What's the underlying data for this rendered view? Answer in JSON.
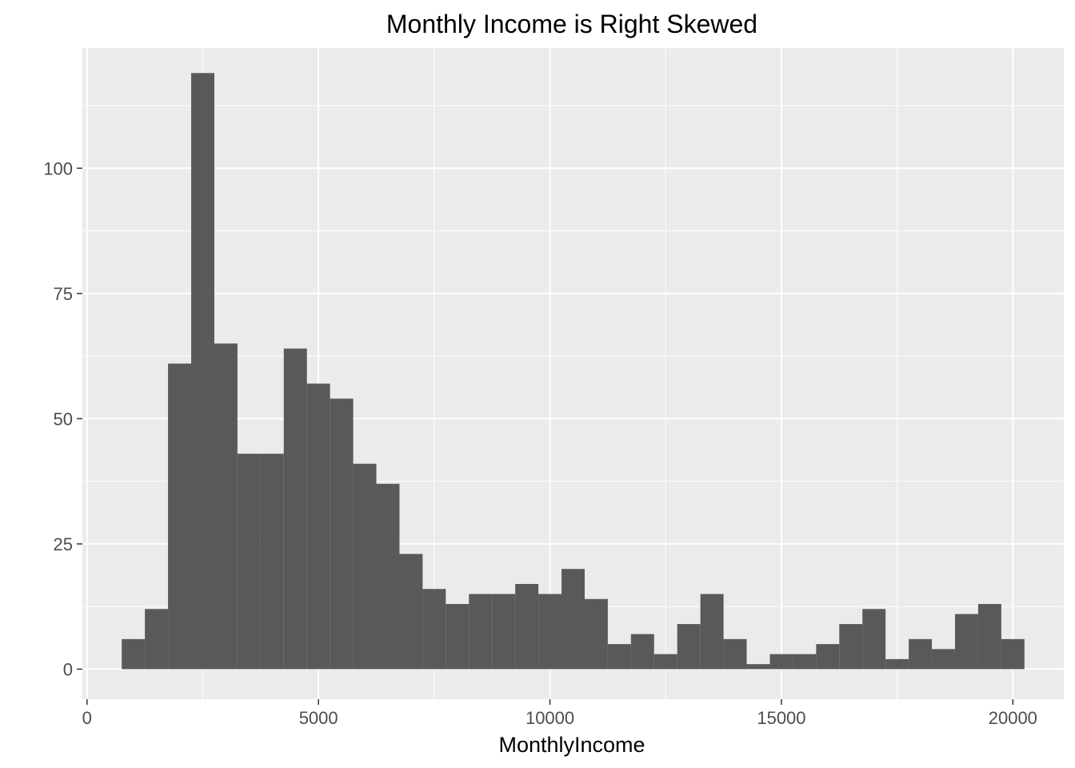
{
  "chart_data": {
    "type": "bar",
    "title": "Monthly Income is Right Skewed",
    "xlabel": "MonthlyIncome",
    "ylabel": "",
    "xlim": [
      -100,
      21100
    ],
    "ylim": [
      -6,
      124
    ],
    "x_ticks": [
      0,
      5000,
      10000,
      15000,
      20000
    ],
    "x_tick_labels": [
      "0",
      "5000",
      "10000",
      "15000",
      "20000"
    ],
    "y_ticks": [
      0,
      25,
      50,
      75,
      100
    ],
    "y_tick_labels": [
      "0",
      "25",
      "50",
      "75",
      "100"
    ],
    "bin_start": 750,
    "bin_width": 500,
    "counts": [
      6,
      12,
      61,
      119,
      65,
      43,
      43,
      64,
      57,
      54,
      41,
      37,
      23,
      16,
      13,
      15,
      15,
      17,
      15,
      20,
      14,
      5,
      7,
      3,
      9,
      15,
      6,
      1,
      3,
      3,
      5,
      9,
      12,
      2,
      6,
      4,
      11,
      13,
      6
    ],
    "grid": true,
    "bar_color": "#595959",
    "panel_color": "#ebebeb",
    "grid_color": "#ffffff"
  }
}
